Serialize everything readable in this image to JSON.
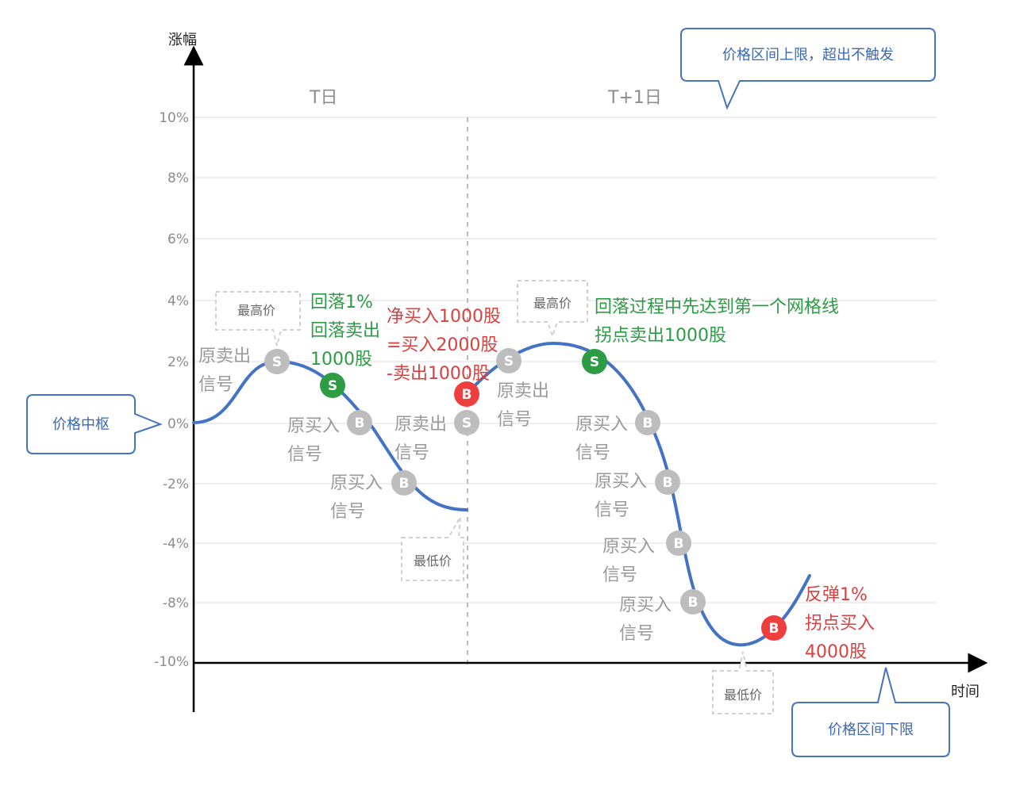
{
  "axes": {
    "y_title": "涨幅",
    "x_title": "时间",
    "y_ticks": [
      "10%",
      "8%",
      "6%",
      "4%",
      "2%",
      "0%",
      "-2%",
      "-4%",
      "-8%",
      "-10%"
    ]
  },
  "days": {
    "t": "T日",
    "t1": "T+1日"
  },
  "callouts": {
    "upper": "价格区间上限，超出不触发",
    "center": "价格中枢",
    "lower": "价格区间下限"
  },
  "annotations": {
    "high_t": "最高价",
    "low_t": "最低价",
    "high_t1": "最高价",
    "low_t1": "最低价"
  },
  "signals": {
    "orig_sell_1": [
      "原卖出",
      "信号"
    ],
    "orig_buy_1": [
      "原买入",
      "信号"
    ],
    "orig_buy_2": [
      "原买入",
      "信号"
    ],
    "orig_sell_2": [
      "原卖出",
      "信号"
    ],
    "orig_sell_3": [
      "原卖出",
      "信号"
    ],
    "orig_buy_3": [
      "原买入",
      "信号"
    ],
    "orig_buy_4": [
      "原买入",
      "信号"
    ],
    "orig_buy_5": [
      "原买入",
      "信号"
    ],
    "orig_buy_6": [
      "原买入",
      "信号"
    ]
  },
  "green_notes": {
    "pullback_t": [
      "回落1%",
      "回落卖出",
      "1000股"
    ],
    "pullback_t1": [
      "回落过程中先达到第一个网格线",
      "拐点卖出1000股"
    ]
  },
  "red_notes": {
    "net_buy": [
      "净买入1000股",
      "=买入2000股",
      "-卖出1000股"
    ],
    "rebound": [
      "反弹1%",
      "拐点买入",
      "4000股"
    ]
  },
  "markers": {
    "sell": "S",
    "buy": "B"
  },
  "colors": {
    "curve": "#4472c4",
    "grey_marker": "#bdbdbd",
    "green_marker": "#2e9b45",
    "red_marker": "#ee3e3e",
    "callout_border": "#4472c4"
  }
}
